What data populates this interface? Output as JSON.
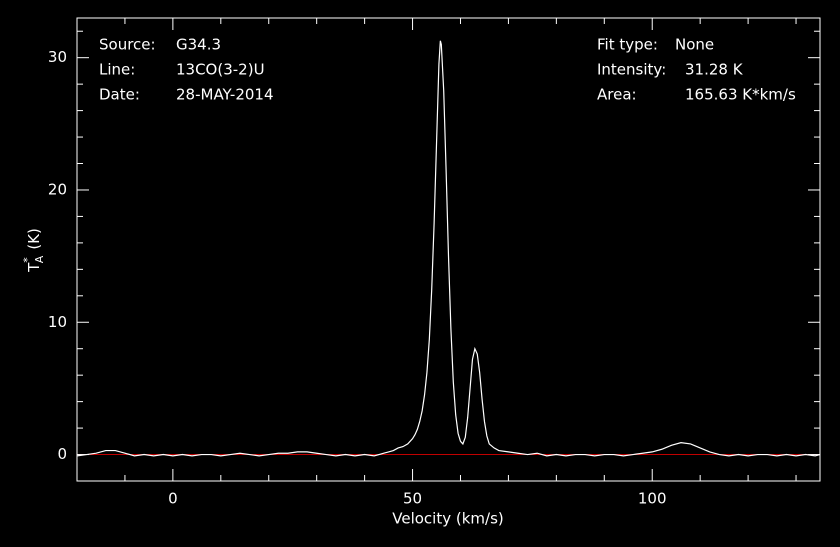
{
  "chart_data": {
    "type": "line",
    "xlabel": "Velocity (km/s)",
    "ylabel": {
      "base": "T",
      "sup": "*",
      "sub": "A",
      "unit": "(K)"
    },
    "info_left": [
      {
        "label": "Source:",
        "value": "G34.3"
      },
      {
        "label": "Line:",
        "value": "13CO(3-2)U"
      },
      {
        "label": "Date:",
        "value": "28-MAY-2014"
      }
    ],
    "info_right": [
      {
        "label": "Fit type:",
        "value": "None"
      },
      {
        "label": "Intensity:",
        "value": "31.28 K"
      },
      {
        "label": "Area:",
        "value": "165.63 K*km/s"
      }
    ],
    "xlim": [
      -20,
      135
    ],
    "ylim": [
      -2,
      33
    ],
    "xticks": [
      0,
      50,
      100
    ],
    "yticks": [
      0,
      10,
      20,
      30
    ],
    "xticks_minor": [
      -10,
      10,
      20,
      30,
      40,
      60,
      70,
      80,
      90,
      110,
      120,
      130
    ],
    "yticks_minor": [
      2,
      4,
      6,
      8,
      12,
      14,
      16,
      18,
      22,
      24,
      26,
      28,
      32
    ],
    "background": "#000000",
    "axis_color": "#ffffff",
    "zero_line_color": "#c00000",
    "x": [
      -20,
      -18,
      -16,
      -14,
      -12,
      -10,
      -8,
      -6,
      -4,
      -2,
      0,
      2,
      4,
      6,
      8,
      10,
      12,
      14,
      16,
      18,
      20,
      22,
      24,
      26,
      28,
      30,
      32,
      34,
      36,
      38,
      40,
      42,
      44,
      45,
      46,
      47,
      48,
      49,
      50,
      50.5,
      51,
      51.5,
      52,
      52.5,
      53,
      53.5,
      54,
      54.5,
      55,
      55.5,
      55.8,
      56,
      56.5,
      57,
      57.5,
      58,
      58.5,
      59,
      59.5,
      60,
      60.5,
      61,
      61.5,
      62,
      62.5,
      63,
      63.5,
      64,
      64.5,
      65,
      65.5,
      66,
      67,
      68,
      70,
      72,
      74,
      76,
      78,
      80,
      82,
      84,
      86,
      88,
      90,
      92,
      94,
      96,
      98,
      100,
      102,
      104,
      106,
      108,
      110,
      112,
      114,
      116,
      118,
      120,
      122,
      124,
      126,
      128,
      130,
      132,
      134,
      135
    ],
    "series": [
      {
        "name": "13CO(3-2)U",
        "color": "#ffffff",
        "values": [
          -0.1,
          0,
          0.1,
          0.3,
          0.3,
          0.1,
          -0.1,
          0,
          -0.1,
          0,
          -0.1,
          0,
          -0.1,
          0,
          0,
          -0.1,
          0,
          0.1,
          0,
          -0.1,
          0,
          0.1,
          0.1,
          0.2,
          0.2,
          0.1,
          0,
          -0.1,
          0,
          -0.1,
          0,
          -0.1,
          0.1,
          0.2,
          0.3,
          0.5,
          0.6,
          0.8,
          1.2,
          1.5,
          1.9,
          2.5,
          3.3,
          4.5,
          6.2,
          8.7,
          12.5,
          17.5,
          23.5,
          29.5,
          31.28,
          31,
          27.5,
          21.5,
          15,
          9.5,
          5.5,
          3,
          1.6,
          1,
          0.8,
          1.3,
          2.8,
          5,
          7.2,
          8,
          7.6,
          6.2,
          4.2,
          2.5,
          1.4,
          0.8,
          0.5,
          0.3,
          0.2,
          0.1,
          0,
          0.1,
          -0.1,
          0,
          -0.1,
          0,
          0,
          -0.1,
          0,
          0,
          -0.1,
          0,
          0.1,
          0.2,
          0.4,
          0.7,
          0.9,
          0.8,
          0.5,
          0.2,
          0,
          -0.1,
          0,
          -0.1,
          0,
          0,
          -0.1,
          0,
          -0.1,
          0,
          -0.1,
          0
        ]
      }
    ]
  }
}
